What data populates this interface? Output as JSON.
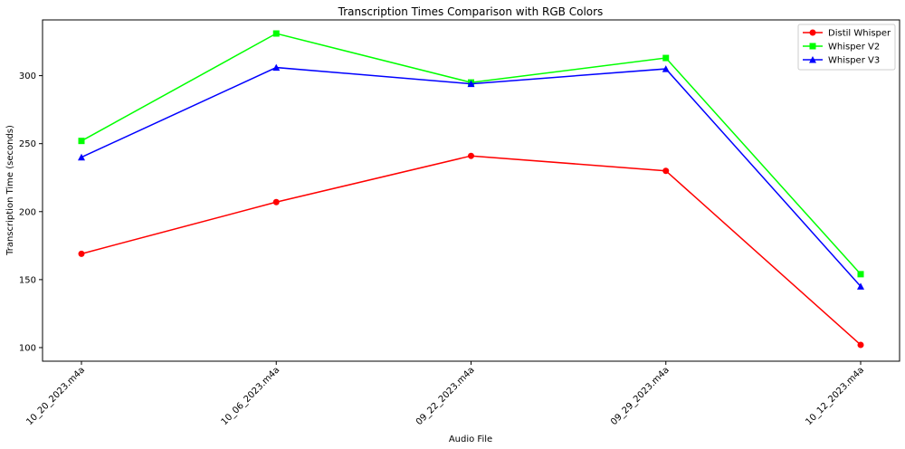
{
  "chart_data": {
    "type": "line",
    "title": "Transcription Times Comparison with RGB Colors",
    "xlabel": "Audio File",
    "ylabel": "Transcription Time (seconds)",
    "categories": [
      "10_20_2023.m4a",
      "10_06_2023.m4a",
      "09_22_2023.m4a",
      "09_29_2023.m4a",
      "10_12_2023.m4a"
    ],
    "yticks": [
      100,
      150,
      200,
      250,
      300
    ],
    "ylim": [
      90,
      341
    ],
    "grid": false,
    "legend_position": "top-right",
    "series": [
      {
        "name": "Distil Whisper",
        "color": "#ff0000",
        "marker": "circle",
        "values": [
          169,
          207,
          241,
          230,
          102
        ]
      },
      {
        "name": "Whisper V2",
        "color": "#00ff00",
        "marker": "square",
        "values": [
          252,
          331,
          295,
          313,
          154
        ]
      },
      {
        "name": "Whisper V3",
        "color": "#0000ff",
        "marker": "triangle",
        "values": [
          240,
          306,
          294,
          305,
          145
        ]
      }
    ]
  }
}
